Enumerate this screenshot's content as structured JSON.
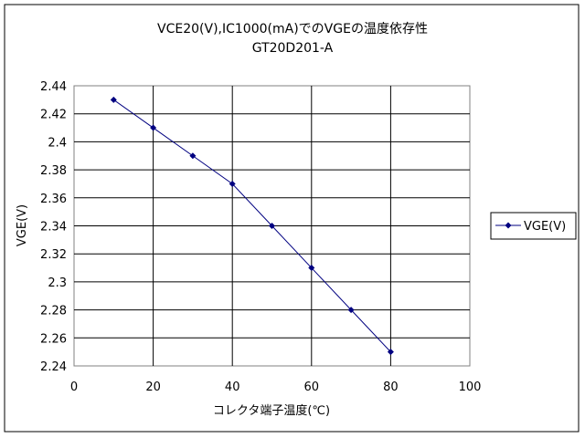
{
  "chart_data": {
    "type": "line",
    "title": "VCE20(V),IC1000(mA)でのVGEの温度依存性",
    "subtitle": "GT20D201-A",
    "xlabel": "コレクタ端子温度(℃)",
    "ylabel": "VGE(V)",
    "xlim": [
      0,
      100
    ],
    "ylim": [
      2.24,
      2.44
    ],
    "x_ticks": [
      "0",
      "20",
      "40",
      "60",
      "80",
      "100"
    ],
    "y_ticks": [
      "2.24",
      "2.26",
      "2.28",
      "2.3",
      "2.32",
      "2.34",
      "2.36",
      "2.38",
      "2.4",
      "2.42",
      "2.44"
    ],
    "grid": true,
    "legend_position": "right",
    "series": [
      {
        "name": "VGE(V)",
        "color": "#000080",
        "marker": "diamond",
        "x": [
          10,
          20,
          30,
          40,
          50,
          60,
          70,
          80
        ],
        "values": [
          2.43,
          2.41,
          2.39,
          2.37,
          2.34,
          2.31,
          2.28,
          2.25
        ]
      }
    ]
  }
}
